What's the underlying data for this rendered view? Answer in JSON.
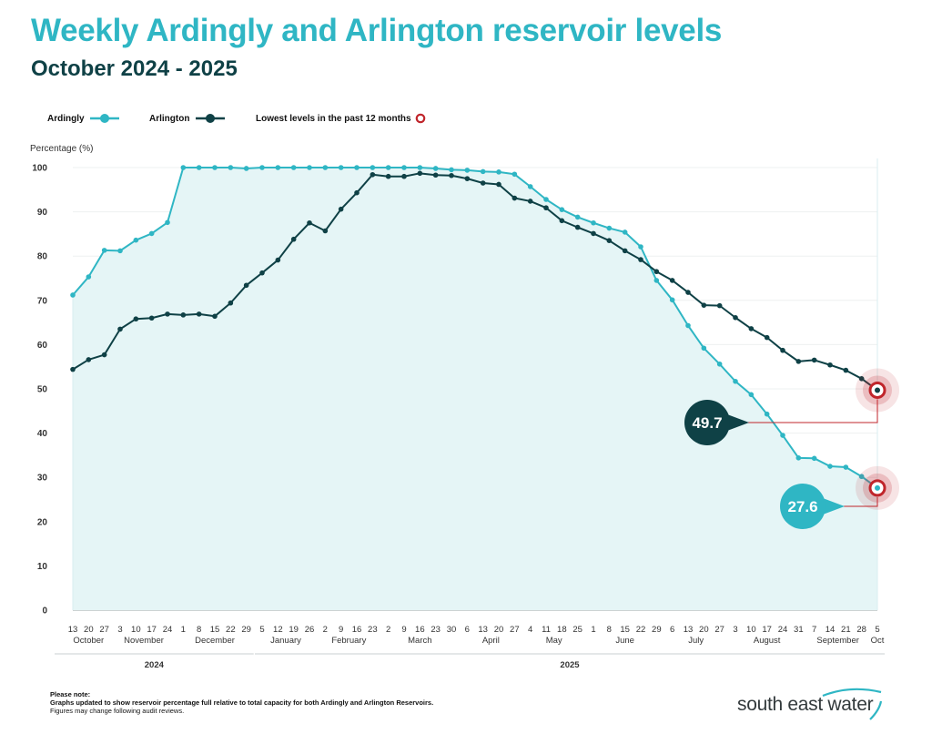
{
  "header": {
    "title": "Weekly Ardingly and Arlington reservoir levels",
    "subtitle": "October 2024 - 2025"
  },
  "legend": {
    "ardingly": "Ardingly",
    "arlington": "Arlington",
    "lowest": "Lowest levels in the past 12 months"
  },
  "notes": {
    "heading": "Please note:",
    "line1": "Graphs updated to show reservoir percentage full relative to total capacity for both Ardingly and Arlington Reservoirs.",
    "line2": "Figures may change following audit reviews."
  },
  "logo": {
    "text": "south east water"
  },
  "colors": {
    "ardingly": "#2fb6c4",
    "arlington": "#0f4146",
    "area": "#e5f5f6",
    "marker": "#c0252b",
    "title": "#2fb6c4",
    "subtitle": "#0f4146"
  },
  "chart_data": {
    "type": "line",
    "title": "Weekly Ardingly and Arlington reservoir levels",
    "ylabel": "Percentage (%)",
    "ylim": [
      0,
      100
    ],
    "yticks": [
      0,
      10,
      20,
      30,
      40,
      50,
      60,
      70,
      80,
      90,
      100
    ],
    "grid": true,
    "legend_position": "top-left",
    "x": [
      "13",
      "20",
      "27",
      "3",
      "10",
      "17",
      "24",
      "1",
      "8",
      "15",
      "22",
      "29",
      "5",
      "12",
      "19",
      "26",
      "2",
      "9",
      "16",
      "23",
      "2",
      "9",
      "16",
      "23",
      "30",
      "6",
      "13",
      "20",
      "27",
      "4",
      "11",
      "18",
      "25",
      "1",
      "8",
      "15",
      "22",
      "29",
      "6",
      "13",
      "20",
      "27",
      "3",
      "10",
      "17",
      "24",
      "31",
      "7",
      "14",
      "21",
      "28",
      "5"
    ],
    "months": [
      {
        "label": "October",
        "start": 0,
        "end": 2
      },
      {
        "label": "November",
        "start": 3,
        "end": 6
      },
      {
        "label": "December",
        "start": 7,
        "end": 11
      },
      {
        "label": "January",
        "start": 12,
        "end": 15
      },
      {
        "label": "February",
        "start": 16,
        "end": 19
      },
      {
        "label": "March",
        "start": 20,
        "end": 24
      },
      {
        "label": "April",
        "start": 25,
        "end": 28
      },
      {
        "label": "May",
        "start": 29,
        "end": 32
      },
      {
        "label": "June",
        "start": 33,
        "end": 37
      },
      {
        "label": "July",
        "start": 38,
        "end": 41
      },
      {
        "label": "August",
        "start": 42,
        "end": 46
      },
      {
        "label": "September",
        "start": 47,
        "end": 50
      },
      {
        "label": "Oct",
        "start": 51,
        "end": 51
      }
    ],
    "years": [
      {
        "label": "2024",
        "start": 0,
        "end": 11
      },
      {
        "label": "2025",
        "start": 12,
        "end": 51
      }
    ],
    "series": [
      {
        "name": "Ardingly",
        "values": [
          71.2,
          75.3,
          81.3,
          81.2,
          83.6,
          85.1,
          87.6,
          100,
          100,
          100,
          100,
          99.8,
          100,
          100,
          100,
          100,
          100,
          100,
          100,
          100,
          100,
          100,
          100,
          99.8,
          99.5,
          99.4,
          99.1,
          99.0,
          98.5,
          95.7,
          92.8,
          90.5,
          88.8,
          87.5,
          86.3,
          85.4,
          82.1,
          74.5,
          70.1,
          64.3,
          59.2,
          55.6,
          51.7,
          48.7,
          44.3,
          39.5,
          34.4,
          34.3,
          32.5,
          32.3,
          30.2,
          27.6
        ]
      },
      {
        "name": "Arlington",
        "values": [
          54.4,
          56.6,
          57.7,
          63.5,
          65.8,
          66.0,
          66.9,
          66.7,
          66.9,
          66.4,
          69.4,
          73.4,
          76.2,
          79.1,
          83.8,
          87.5,
          85.7,
          90.6,
          94.3,
          98.4,
          98.0,
          98.0,
          98.7,
          98.3,
          98.2,
          97.5,
          96.5,
          96.2,
          93.1,
          92.4,
          90.9,
          88.0,
          86.5,
          85.1,
          83.5,
          81.2,
          79.2,
          76.5,
          74.5,
          71.8,
          68.9,
          68.8,
          66.1,
          63.6,
          61.6,
          58.7,
          56.2,
          56.5,
          55.4,
          54.2,
          52.3,
          49.7
        ]
      }
    ],
    "annotations": [
      {
        "series": "Arlington",
        "value": "49.7"
      },
      {
        "series": "Ardingly",
        "value": "27.6"
      }
    ]
  }
}
